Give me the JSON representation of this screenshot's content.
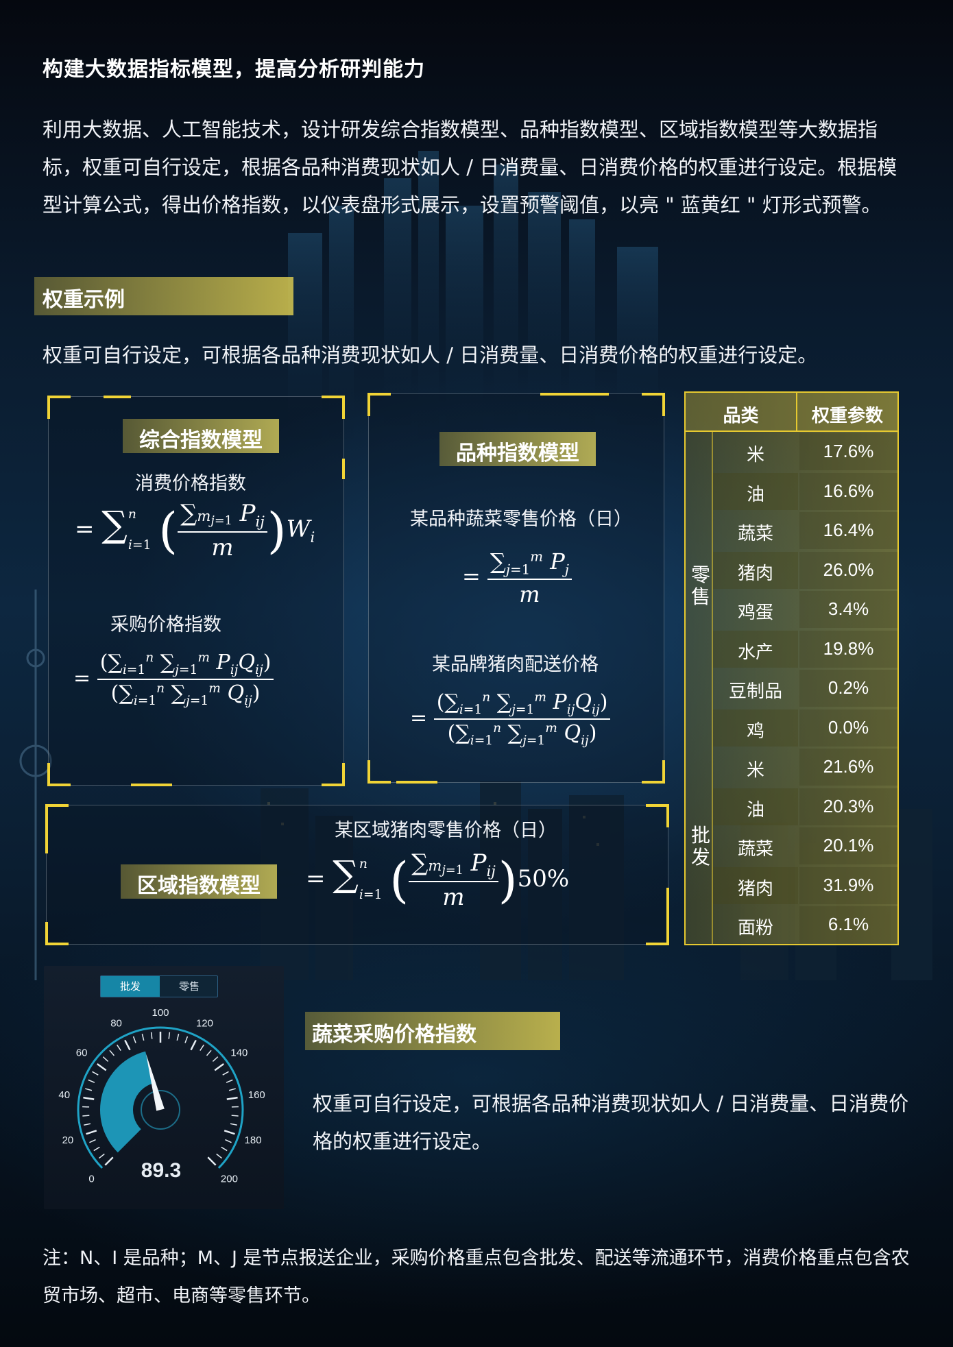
{
  "heading": "构建大数据指标模型，提高分析研判能力",
  "intro": "利用大数据、人工智能技术，设计研发综合指数模型、品种指数模型、区域指数模型等大数据指标，权重可自行设定，根据各品种消费现状如人 / 日消费量、日消费价格的权重进行设定。根据模型计算公式，得出价格指数，以仪表盘形式展示，设置预警阈值，以亮 \" 蓝黄红 \" 灯形式预警。",
  "weights_section": {
    "title": "权重示例",
    "description": "权重可自行设定，可根据各品种消费现状如人 / 日消费量、日消费价格的权重进行设定。"
  },
  "composite_model": {
    "title": "综合指数模型",
    "consumer_caption": "消费价格指数",
    "purchase_caption": "采购价格指数"
  },
  "variety_model": {
    "title": "品种指数模型",
    "retail_caption": "某品种蔬菜零售价格（日）",
    "delivery_caption": "某品牌猪肉配送价格"
  },
  "regional_model": {
    "title": "区域指数模型",
    "caption": "某区域猪肉零售价格（日）",
    "weight": "50%"
  },
  "weight_table": {
    "headers": [
      "品类",
      "权重参数"
    ],
    "groups": [
      {
        "name": "零售",
        "rows": [
          {
            "category": "米",
            "value": "17.6%"
          },
          {
            "category": "油",
            "value": "16.6%"
          },
          {
            "category": "蔬菜",
            "value": "16.4%"
          },
          {
            "category": "猪肉",
            "value": "26.0%"
          },
          {
            "category": "鸡蛋",
            "value": "3.4%"
          },
          {
            "category": "水产",
            "value": "19.8%"
          },
          {
            "category": "豆制品",
            "value": "0.2%"
          },
          {
            "category": "鸡",
            "value": "0.0%"
          }
        ]
      },
      {
        "name": "批发",
        "rows": [
          {
            "category": "米",
            "value": "21.6%"
          },
          {
            "category": "油",
            "value": "20.3%"
          },
          {
            "category": "蔬菜",
            "value": "20.1%"
          },
          {
            "category": "猪肉",
            "value": "31.9%"
          },
          {
            "category": "面粉",
            "value": "6.1%"
          }
        ]
      }
    ]
  },
  "gauge": {
    "tabs": [
      "批发",
      "零售"
    ],
    "active_tab": "批发",
    "value": 89.3,
    "value_label": "89.3",
    "min": 0,
    "max": 200,
    "tick_labels": [
      "0",
      "20",
      "40",
      "60",
      "80",
      "100",
      "120",
      "140",
      "160",
      "180",
      "200"
    ],
    "accent_color": "#1fa3c6"
  },
  "index_section": {
    "title": "蔬菜采购价格指数",
    "description": "权重可自行设定，可根据各品种消费现状如人 / 日消费量、日消费价格的权重进行设定。"
  },
  "note": "注：N、I 是品种；M、J 是节点报送企业，采购价格重点包含批发、配送等流通环节，消费价格重点包含农贸市场、超市、电商等零售环节。",
  "colors": {
    "highlight": "#f1d436",
    "table_border": "#e6c930"
  }
}
